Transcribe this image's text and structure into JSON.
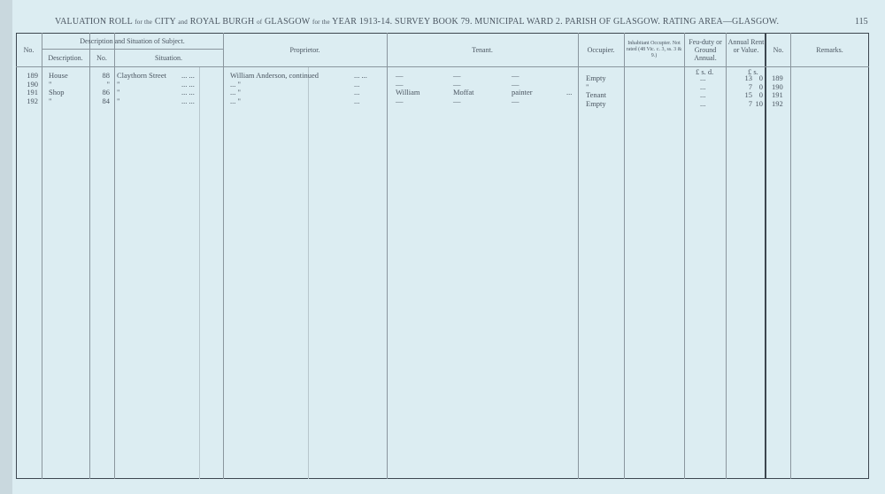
{
  "header": {
    "title_parts": [
      "VALUATION ROLL",
      "for the",
      "CITY",
      "and",
      "ROYAL BURGH",
      "of",
      "GLASGOW",
      "for the",
      "YEAR 1913-14.  SURVEY BOOK 79.  MUNICIPAL WARD 2.  PARISH OF GLASGOW.  RATING AREA—GLASGOW."
    ],
    "page_number": "115"
  },
  "columns": {
    "no": "No.",
    "desc_group": "Description and Situation of Subject.",
    "description": "Description.",
    "sub_no": "No.",
    "situation": "Situation.",
    "proprietor": "Proprietor.",
    "tenant": "Tenant.",
    "occupier": "Occupier.",
    "inhabitant": "Inhabitant Occupier. Not rated (48 Vic. c. 3, ss. 3 & 9.)",
    "feu": "Feu-duty or Ground Annual.",
    "annual": "Annual Rent or Value.",
    "no2": "No.",
    "remarks": "Remarks.",
    "feu_units": "£   s.   d.",
    "annual_units": "£   s."
  },
  "rows": [
    {
      "no": "189",
      "description": "House",
      "num": "88",
      "situation": "Claythorn Street",
      "dots1": "...      ...",
      "proprietor": "William Anderson, continued",
      "dots2": "...      ...",
      "tenant1": "—",
      "tenant2": "—",
      "tenant3": "—",
      "tdots": "",
      "occupier": "Empty",
      "feu": "...",
      "pounds": "13",
      "shillings": "0",
      "no2": "189"
    },
    {
      "no": "190",
      "description": "\"",
      "num": "\"",
      "situation": "\"",
      "dots1": "...      ...",
      "proprietor": "...                  \"",
      "dots2": "...",
      "tenant1": "—",
      "tenant2": "—",
      "tenant3": "—",
      "tdots": "",
      "occupier": "\"",
      "feu": "...",
      "pounds": "7",
      "shillings": "0",
      "no2": "190"
    },
    {
      "no": "191",
      "description": "Shop",
      "num": "86",
      "situation": "\"",
      "dots1": "...      ...",
      "proprietor": "...                  \"",
      "dots2": "...",
      "tenant1": "William",
      "tenant2": "Moffat",
      "tenant3": "painter",
      "tdots": "...",
      "occupier": "Tenant",
      "feu": "...",
      "pounds": "15",
      "shillings": "0",
      "no2": "191"
    },
    {
      "no": "192",
      "description": "\"",
      "num": "84",
      "situation": "\"",
      "dots1": "...      ...",
      "proprietor": "...                  \"",
      "dots2": "...",
      "tenant1": "—",
      "tenant2": "—",
      "tenant3": "—",
      "tdots": "",
      "occupier": "Empty",
      "feu": "...",
      "pounds": "7",
      "shillings": "10",
      "no2": "192"
    }
  ]
}
